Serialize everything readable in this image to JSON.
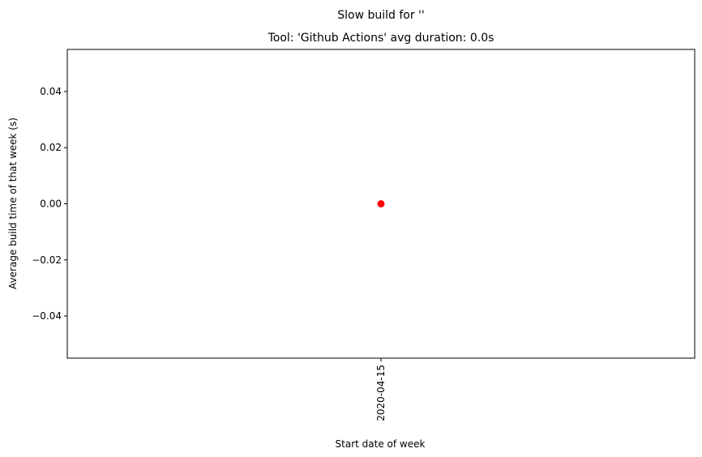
{
  "chart_data": {
    "type": "scatter",
    "suptitle": "Slow build for ''",
    "title": "Tool: 'Github Actions' avg duration: 0.0s",
    "xlabel": "Start date of week",
    "ylabel": "Average build time of that week (s)",
    "x_categories": [
      "2020-04-15"
    ],
    "points": [
      {
        "x": "2020-04-15",
        "y": 0.0
      }
    ],
    "ylim": [
      -0.055,
      0.055
    ],
    "yticks": [
      -0.04,
      -0.02,
      0.0,
      0.02,
      0.04
    ],
    "ytick_labels": [
      "−0.04",
      "−0.02",
      "0.00",
      "0.02",
      "0.04"
    ],
    "marker_color": "#ff0000",
    "grid": false,
    "legend": "none"
  }
}
